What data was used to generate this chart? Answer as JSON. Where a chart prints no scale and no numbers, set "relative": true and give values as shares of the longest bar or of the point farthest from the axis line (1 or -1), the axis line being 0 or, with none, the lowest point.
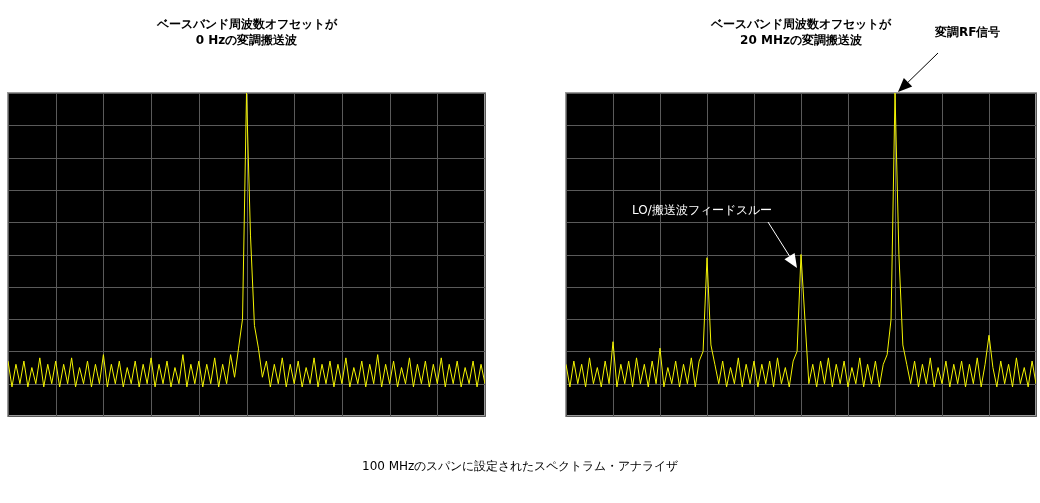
{
  "chart_data": [
    {
      "type": "line",
      "title": "ベースバンド周波数オフセットが\n0 Hzの変調搬送波",
      "relative": true,
      "grid": true,
      "categories": [
        null,
        null,
        null,
        null,
        null,
        null,
        null,
        null,
        null,
        null,
        null,
        null,
        null,
        null,
        null,
        null,
        null,
        null,
        null,
        null,
        null,
        null,
        null,
        null,
        null,
        null,
        null,
        null,
        null,
        null,
        null,
        null,
        null,
        null,
        null,
        null,
        null,
        null,
        null,
        null,
        null,
        null,
        null,
        null,
        null,
        null,
        null,
        null,
        null,
        null,
        null,
        null,
        null,
        null,
        null,
        null,
        null,
        null,
        null,
        null,
        null,
        null,
        null,
        null,
        null,
        null,
        null,
        null,
        null,
        null,
        null,
        null,
        null,
        null,
        null,
        null,
        null,
        null,
        null,
        null,
        null,
        null,
        null,
        null,
        null,
        null,
        null,
        null,
        null,
        null,
        null,
        null,
        null,
        null,
        null,
        null,
        null,
        null,
        null,
        null,
        null,
        null,
        null,
        null,
        null,
        null,
        null,
        null,
        null,
        null,
        null,
        null,
        null,
        null,
        null,
        null,
        null,
        null,
        null,
        null,
        null
      ],
      "series": [
        {
          "color": "#f5f500",
          "values": [
            0.17,
            0.09,
            0.16,
            0.1,
            0.17,
            0.09,
            0.15,
            0.1,
            0.18,
            0.09,
            0.16,
            0.1,
            0.17,
            0.09,
            0.16,
            0.1,
            0.18,
            0.09,
            0.15,
            0.1,
            0.17,
            0.09,
            0.16,
            0.1,
            0.19,
            0.09,
            0.16,
            0.1,
            0.17,
            0.09,
            0.15,
            0.1,
            0.17,
            0.09,
            0.16,
            0.1,
            0.18,
            0.09,
            0.16,
            0.1,
            0.17,
            0.09,
            0.15,
            0.1,
            0.19,
            0.09,
            0.16,
            0.1,
            0.17,
            0.09,
            0.16,
            0.1,
            0.18,
            0.09,
            0.16,
            0.1,
            0.19,
            0.12,
            0.21,
            0.3,
            1.0,
            0.56,
            0.28,
            0.21,
            0.12,
            0.17,
            0.09,
            0.16,
            0.1,
            0.18,
            0.09,
            0.16,
            0.1,
            0.17,
            0.09,
            0.15,
            0.1,
            0.18,
            0.09,
            0.16,
            0.1,
            0.17,
            0.09,
            0.16,
            0.1,
            0.18,
            0.09,
            0.15,
            0.1,
            0.17,
            0.09,
            0.16,
            0.1,
            0.19,
            0.09,
            0.16,
            0.1,
            0.17,
            0.09,
            0.15,
            0.1,
            0.18,
            0.09,
            0.16,
            0.1,
            0.17,
            0.09,
            0.16,
            0.1,
            0.18,
            0.09,
            0.16,
            0.1,
            0.17,
            0.09,
            0.15,
            0.1,
            0.17,
            0.09,
            0.16,
            0.1
          ]
        }
      ],
      "annotations": [
        "100 MHzのスパンに設定されたスペクトラム・アナライザ"
      ]
    },
    {
      "type": "line",
      "title": "ベースバンド周波数オフセットが\n20 MHzの変調搬送波",
      "relative": true,
      "grid": true,
      "categories": [
        null,
        null,
        null,
        null,
        null,
        null,
        null,
        null,
        null,
        null,
        null,
        null,
        null,
        null,
        null,
        null,
        null,
        null,
        null,
        null,
        null,
        null,
        null,
        null,
        null,
        null,
        null,
        null,
        null,
        null,
        null,
        null,
        null,
        null,
        null,
        null,
        null,
        null,
        null,
        null,
        null,
        null,
        null,
        null,
        null,
        null,
        null,
        null,
        null,
        null,
        null,
        null,
        null,
        null,
        null,
        null,
        null,
        null,
        null,
        null,
        null,
        null,
        null,
        null,
        null,
        null,
        null,
        null,
        null,
        null,
        null,
        null,
        null,
        null,
        null,
        null,
        null,
        null,
        null,
        null,
        null,
        null,
        null,
        null,
        null,
        null,
        null,
        null,
        null,
        null,
        null,
        null,
        null,
        null,
        null,
        null,
        null,
        null,
        null,
        null,
        null,
        null,
        null,
        null,
        null,
        null,
        null,
        null,
        null,
        null,
        null,
        null,
        null,
        null,
        null,
        null,
        null,
        null,
        null,
        null,
        null
      ],
      "series": [
        {
          "color": "#f5f500",
          "values": [
            0.16,
            0.09,
            0.17,
            0.1,
            0.16,
            0.09,
            0.18,
            0.1,
            0.15,
            0.09,
            0.17,
            0.1,
            0.23,
            0.09,
            0.16,
            0.1,
            0.17,
            0.09,
            0.18,
            0.1,
            0.16,
            0.09,
            0.17,
            0.1,
            0.21,
            0.09,
            0.15,
            0.1,
            0.17,
            0.09,
            0.16,
            0.1,
            0.18,
            0.09,
            0.17,
            0.2,
            0.49,
            0.22,
            0.16,
            0.1,
            0.17,
            0.09,
            0.15,
            0.1,
            0.18,
            0.09,
            0.16,
            0.1,
            0.17,
            0.09,
            0.16,
            0.1,
            0.17,
            0.09,
            0.18,
            0.1,
            0.15,
            0.09,
            0.17,
            0.2,
            0.5,
            0.3,
            0.1,
            0.16,
            0.09,
            0.17,
            0.1,
            0.18,
            0.09,
            0.16,
            0.1,
            0.17,
            0.09,
            0.15,
            0.1,
            0.18,
            0.09,
            0.16,
            0.1,
            0.17,
            0.09,
            0.16,
            0.19,
            0.3,
            1.0,
            0.5,
            0.22,
            0.16,
            0.1,
            0.17,
            0.09,
            0.16,
            0.1,
            0.18,
            0.09,
            0.15,
            0.1,
            0.17,
            0.09,
            0.16,
            0.1,
            0.17,
            0.09,
            0.16,
            0.1,
            0.18,
            0.09,
            0.16,
            0.25,
            0.15,
            0.09,
            0.17,
            0.1,
            0.16,
            0.09,
            0.18,
            0.1,
            0.15,
            0.09,
            0.17,
            0.1
          ]
        }
      ],
      "annotations": [
        "変調RF信号",
        "LO/搬送波フィードスルー"
      ]
    }
  ]
}
